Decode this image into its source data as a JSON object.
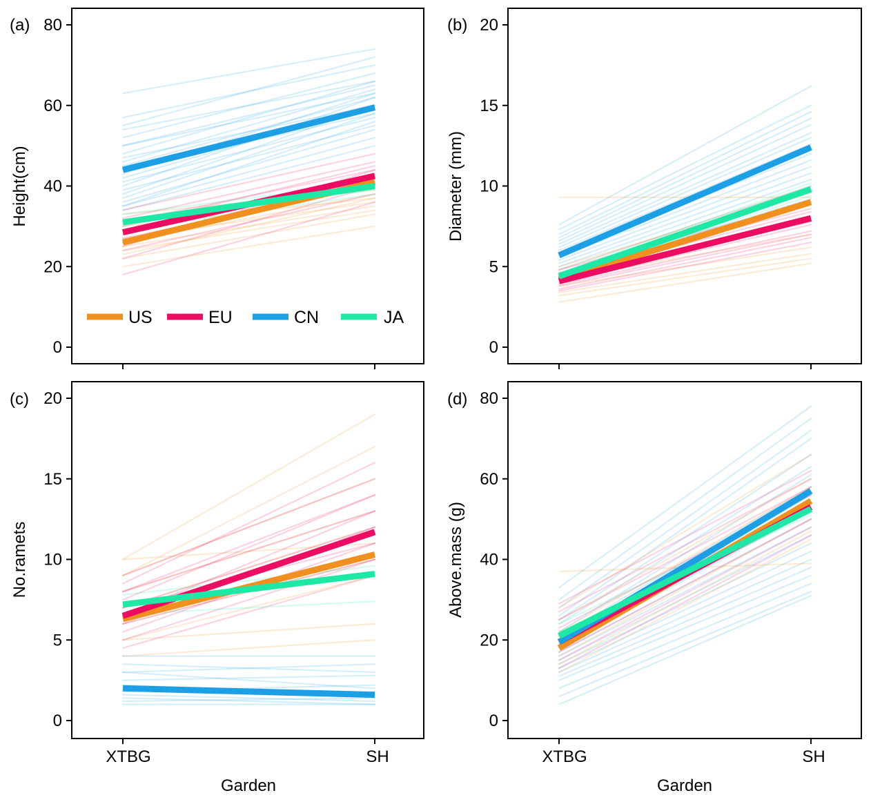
{
  "chart_data": [
    {
      "panel": "(a)",
      "type": "line",
      "ylabel": "Height(cm)",
      "xlabel": "",
      "categories": [
        "XTBG",
        "SH"
      ],
      "ylim": [
        0,
        80
      ],
      "yticks": [
        0,
        20,
        40,
        60,
        80
      ],
      "legend": {
        "placement": "bottom",
        "entries": [
          "US",
          "EU",
          "CN",
          "JA"
        ]
      },
      "series": [
        {
          "name": "US",
          "values": [
            26.0,
            41.0
          ]
        },
        {
          "name": "EU",
          "values": [
            28.5,
            42.5
          ]
        },
        {
          "name": "CN",
          "values": [
            44.0,
            59.5
          ]
        },
        {
          "name": "JA",
          "values": [
            31.0,
            40.0
          ]
        }
      ],
      "background_lines": [
        {
          "group": "CN",
          "lines": [
            [
              63,
              74
            ],
            [
              57,
              70
            ],
            [
              55,
              72
            ],
            [
              54,
              66
            ],
            [
              52,
              68
            ],
            [
              50,
              65
            ],
            [
              50,
              63
            ],
            [
              48,
              66
            ],
            [
              47,
              60
            ],
            [
              46,
              64
            ],
            [
              45,
              62
            ],
            [
              44,
              58
            ],
            [
              43,
              63
            ],
            [
              42,
              60
            ],
            [
              41,
              57
            ],
            [
              40,
              62
            ],
            [
              39,
              55
            ],
            [
              38,
              60
            ],
            [
              37,
              58
            ],
            [
              36,
              54
            ],
            [
              35,
              56
            ],
            [
              35,
              52
            ],
            [
              34,
              50
            ]
          ]
        },
        {
          "group": "EU",
          "lines": [
            [
              34,
              48
            ],
            [
              32,
              46
            ],
            [
              31,
              44
            ],
            [
              30,
              45
            ],
            [
              29,
              42
            ],
            [
              28,
              43
            ],
            [
              27,
              40
            ],
            [
              26,
              41
            ],
            [
              25,
              44
            ],
            [
              24,
              38
            ],
            [
              22,
              40
            ],
            [
              18,
              36
            ]
          ]
        },
        {
          "group": "US",
          "lines": [
            [
              33,
              39
            ],
            [
              30,
              37
            ],
            [
              28,
              42
            ],
            [
              27,
              36
            ],
            [
              26,
              38
            ],
            [
              25,
              35
            ],
            [
              24,
              34
            ],
            [
              23,
              37
            ],
            [
              22,
              33
            ],
            [
              20,
              30
            ]
          ]
        },
        {
          "group": "JA",
          "lines": [
            [
              33,
              41
            ],
            [
              31,
              39
            ],
            [
              29,
              38
            ]
          ]
        }
      ]
    },
    {
      "panel": "(b)",
      "type": "line",
      "ylabel": "Diameter (mm)",
      "xlabel": "",
      "categories": [
        "XTBG",
        "SH"
      ],
      "ylim": [
        0,
        20
      ],
      "yticks": [
        0,
        5,
        10,
        15,
        20
      ],
      "series": [
        {
          "name": "US",
          "values": [
            4.2,
            9.0
          ]
        },
        {
          "name": "EU",
          "values": [
            4.1,
            8.0
          ]
        },
        {
          "name": "CN",
          "values": [
            5.7,
            12.4
          ]
        },
        {
          "name": "JA",
          "values": [
            4.4,
            9.8
          ]
        }
      ],
      "background_lines": [
        {
          "group": "CN",
          "lines": [
            [
              7.6,
              16.2
            ],
            [
              7.3,
              15.0
            ],
            [
              7.0,
              14.6
            ],
            [
              6.8,
              14.2
            ],
            [
              6.6,
              13.8
            ],
            [
              6.4,
              13.3
            ],
            [
              6.2,
              13.0
            ],
            [
              6.0,
              12.6
            ],
            [
              5.8,
              12.0
            ],
            [
              5.6,
              11.6
            ],
            [
              5.4,
              11.2
            ],
            [
              5.2,
              10.8
            ],
            [
              5.0,
              10.4
            ],
            [
              4.8,
              10.0
            ],
            [
              4.6,
              9.6
            ],
            [
              4.4,
              9.2
            ]
          ]
        },
        {
          "group": "EU",
          "lines": [
            [
              4.8,
              9.0
            ],
            [
              4.6,
              8.6
            ],
            [
              4.4,
              8.4
            ],
            [
              4.2,
              7.8
            ],
            [
              4.0,
              7.6
            ],
            [
              3.9,
              7.2
            ],
            [
              3.8,
              7.0
            ],
            [
              3.6,
              6.8
            ],
            [
              3.5,
              6.5
            ]
          ]
        },
        {
          "group": "US",
          "lines": [
            [
              9.3,
              9.3
            ],
            [
              5.0,
              9.6
            ],
            [
              4.8,
              10.0
            ],
            [
              4.2,
              7.0
            ],
            [
              3.8,
              6.2
            ],
            [
              3.4,
              5.8
            ],
            [
              3.2,
              5.5
            ],
            [
              2.8,
              5.2
            ]
          ]
        },
        {
          "group": "JA",
          "lines": [
            [
              4.6,
              10.2
            ],
            [
              4.3,
              9.4
            ]
          ]
        }
      ]
    },
    {
      "panel": "(c)",
      "type": "line",
      "ylabel": "No.ramets",
      "xlabel": "Garden",
      "categories": [
        "XTBG",
        "SH"
      ],
      "ylim": [
        0,
        20
      ],
      "yticks": [
        0,
        5,
        10,
        15,
        20
      ],
      "series": [
        {
          "name": "US",
          "values": [
            6.3,
            10.3
          ]
        },
        {
          "name": "EU",
          "values": [
            6.5,
            11.7
          ]
        },
        {
          "name": "CN",
          "values": [
            2.0,
            1.6
          ]
        },
        {
          "name": "JA",
          "values": [
            7.2,
            9.1
          ]
        }
      ],
      "background_lines": [
        {
          "group": "US",
          "lines": [
            [
              10,
              19
            ],
            [
              10,
              11
            ],
            [
              9,
              17
            ],
            [
              9,
              15
            ],
            [
              8,
              13
            ],
            [
              7,
              12
            ],
            [
              6,
              10
            ],
            [
              5,
              9
            ],
            [
              5,
              6
            ],
            [
              4,
              5
            ]
          ]
        },
        {
          "group": "EU",
          "lines": [
            [
              9,
              15
            ],
            [
              8.5,
              16
            ],
            [
              8,
              14
            ],
            [
              8,
              13
            ],
            [
              7.5,
              14
            ],
            [
              7,
              12
            ],
            [
              7,
              11
            ],
            [
              6.5,
              13
            ],
            [
              6,
              12
            ],
            [
              6,
              10
            ],
            [
              5.5,
              11
            ],
            [
              5,
              10
            ],
            [
              4.5,
              9
            ]
          ]
        },
        {
          "group": "CN",
          "lines": [
            [
              4,
              4
            ],
            [
              3.5,
              3
            ],
            [
              3,
              3.5
            ],
            [
              3,
              2
            ],
            [
              2.5,
              2.8
            ],
            [
              2.2,
              1.5
            ],
            [
              1.8,
              2.2
            ],
            [
              1.6,
              1.2
            ],
            [
              1.4,
              1.0
            ],
            [
              1.2,
              1.4
            ],
            [
              1,
              1
            ]
          ]
        },
        {
          "group": "JA",
          "lines": [
            [
              7.8,
              9.6
            ],
            [
              6.6,
              7.4
            ]
          ]
        }
      ]
    },
    {
      "panel": "(d)",
      "type": "line",
      "ylabel": "Above.mass (g)",
      "xlabel": "Garden",
      "categories": [
        "XTBG",
        "SH"
      ],
      "ylim": [
        0,
        80
      ],
      "yticks": [
        0,
        20,
        40,
        60,
        80
      ],
      "series": [
        {
          "name": "US",
          "values": [
            18.0,
            54.5
          ]
        },
        {
          "name": "EU",
          "values": [
            19.5,
            53.0
          ]
        },
        {
          "name": "CN",
          "values": [
            19.5,
            57.0
          ]
        },
        {
          "name": "JA",
          "values": [
            21.0,
            52.5
          ]
        }
      ],
      "background_lines": [
        {
          "group": "CN",
          "lines": [
            [
              33,
              78
            ],
            [
              30,
              75
            ],
            [
              28,
              72
            ],
            [
              26,
              70
            ],
            [
              25,
              66
            ],
            [
              24,
              63
            ],
            [
              22,
              61
            ],
            [
              21,
              58
            ],
            [
              20,
              56
            ],
            [
              19,
              54
            ],
            [
              18,
              52
            ],
            [
              17,
              50
            ],
            [
              16,
              48
            ],
            [
              15,
              46
            ],
            [
              14,
              44
            ],
            [
              13,
              42
            ],
            [
              12,
              40
            ],
            [
              11,
              38
            ],
            [
              10,
              36
            ],
            [
              8,
              34
            ],
            [
              6,
              32
            ],
            [
              4,
              31
            ]
          ]
        },
        {
          "group": "US",
          "lines": [
            [
              37,
              39
            ],
            [
              28,
              66
            ],
            [
              25,
              60
            ],
            [
              22,
              58
            ],
            [
              20,
              55
            ],
            [
              16,
              50
            ],
            [
              14,
              47
            ],
            [
              12,
              45
            ]
          ]
        },
        {
          "group": "EU",
          "lines": [
            [
              29,
              62
            ],
            [
              27,
              60
            ],
            [
              25,
              58
            ],
            [
              23,
              56
            ],
            [
              21,
              54
            ],
            [
              19,
              52
            ],
            [
              17,
              50
            ],
            [
              15,
              48
            ],
            [
              13,
              46
            ]
          ]
        },
        {
          "group": "JA",
          "lines": [
            [
              24,
              54
            ],
            [
              22,
              51
            ]
          ]
        }
      ]
    }
  ],
  "colors": {
    "US": "#F0901E",
    "EU": "#EC0C62",
    "CN": "#1D9FE6",
    "JA": "#1EE8A6"
  }
}
